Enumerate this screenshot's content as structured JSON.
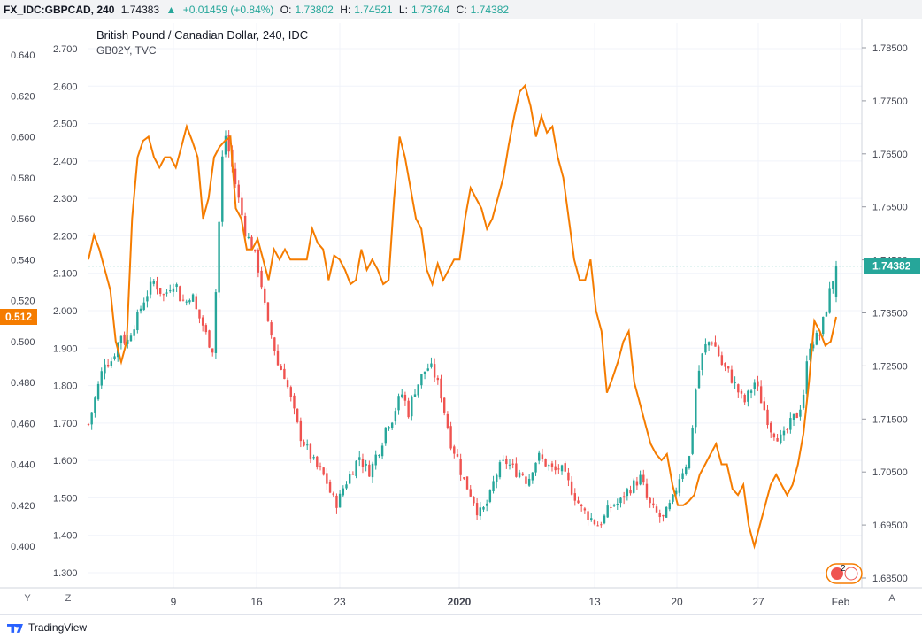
{
  "header": {
    "symbol": "FX_IDC:GBPCAD, 240",
    "last": "1.74383",
    "arrow": "▲",
    "change": "+0.01459 (+0.84%)",
    "o_label": "O:",
    "o_val": "1.73802",
    "h_label": "H:",
    "h_val": "1.74521",
    "l_label": "L:",
    "l_val": "1.73764",
    "c_label": "C:",
    "c_val": "1.74382"
  },
  "legend": {
    "main": "British Pound / Canadian Dollar, 240, IDC",
    "compare": "GB02Y, TVC"
  },
  "buttons": {
    "y": "Y",
    "z": "Z",
    "a": "A"
  },
  "logo": {
    "text": "TradingView"
  },
  "event_badge": "2",
  "colors": {
    "up": "#26a69a",
    "down": "#ef5350",
    "compare": "#f57c00",
    "last_line": "#26a69a"
  },
  "chart_data": {
    "type": "line",
    "x_ticks": [
      "9",
      "16",
      "23",
      "2020",
      "13",
      "20",
      "27",
      "Feb"
    ],
    "left_axis": {
      "ticks": [
        "0.640",
        "0.620",
        "0.600",
        "0.580",
        "0.560",
        "0.540",
        "0.520",
        "0.500",
        "0.480",
        "0.460",
        "0.440",
        "0.420",
        "0.400"
      ],
      "range": [
        0.394,
        0.644
      ],
      "current_label": "0.512"
    },
    "inner_axis": {
      "ticks": [
        "2.700",
        "2.600",
        "2.500",
        "2.400",
        "2.300",
        "2.200",
        "2.100",
        "2.000",
        "1.900",
        "1.800",
        "1.700",
        "1.600",
        "1.500",
        "1.400",
        "1.300"
      ]
    },
    "right_axis": {
      "ticks": [
        "1.78500",
        "1.77500",
        "1.76500",
        "1.75500",
        "1.74500",
        "1.73500",
        "1.72500",
        "1.71500",
        "1.70500",
        "1.69500",
        "1.68500"
      ],
      "range": [
        1.6829,
        1.7875
      ],
      "current_label": "1.74382"
    },
    "series": [
      {
        "name": "GB02Y, TVC",
        "style": "line",
        "x_range": [
          0,
          845
        ],
        "values": [
          0.54,
          0.552,
          0.545,
          0.535,
          0.525,
          0.5,
          0.49,
          0.5,
          0.56,
          0.59,
          0.598,
          0.6,
          0.59,
          0.585,
          0.59,
          0.59,
          0.585,
          0.595,
          0.605,
          0.598,
          0.59,
          0.56,
          0.57,
          0.59,
          0.595,
          0.598,
          0.6,
          0.565,
          0.56,
          0.545,
          0.545,
          0.55,
          0.54,
          0.53,
          0.545,
          0.54,
          0.545,
          0.54,
          0.54,
          0.54,
          0.54,
          0.555,
          0.548,
          0.545,
          0.53,
          0.542,
          0.54,
          0.535,
          0.528,
          0.53,
          0.545,
          0.535,
          0.54,
          0.535,
          0.528,
          0.53,
          0.57,
          0.6,
          0.59,
          0.575,
          0.56,
          0.555,
          0.535,
          0.528,
          0.538,
          0.53,
          0.535,
          0.54,
          0.54,
          0.56,
          0.575,
          0.57,
          0.565,
          0.555,
          0.56,
          0.57,
          0.58,
          0.596,
          0.61,
          0.622,
          0.625,
          0.615,
          0.6,
          0.61,
          0.602,
          0.605,
          0.59,
          0.58,
          0.56,
          0.54,
          0.53,
          0.53,
          0.54,
          0.515,
          0.505,
          0.475,
          0.482,
          0.49,
          0.5,
          0.505,
          0.48,
          0.47,
          0.46,
          0.45,
          0.445,
          0.442,
          0.445,
          0.43,
          0.42,
          0.42,
          0.422,
          0.425,
          0.435,
          0.44,
          0.445,
          0.45,
          0.44,
          0.44,
          0.428,
          0.425,
          0.43,
          0.41,
          0.4,
          0.41,
          0.42,
          0.43,
          0.435,
          0.43,
          0.425,
          0.43,
          0.44,
          0.455,
          0.48,
          0.51,
          0.505,
          0.498,
          0.5,
          0.512
        ]
      },
      {
        "name": "British Pound / Canadian Dollar, 240, IDC",
        "style": "candles",
        "path_values": [
          1.714,
          1.718,
          1.722,
          1.726,
          1.7255,
          1.728,
          1.731,
          1.729,
          1.732,
          1.734,
          1.737,
          1.739,
          1.741,
          1.7395,
          1.738,
          1.74,
          1.741,
          1.7375,
          1.737,
          1.739,
          1.735,
          1.733,
          1.73,
          1.728,
          1.75,
          1.77,
          1.765,
          1.76,
          1.755,
          1.75,
          1.748,
          1.745,
          1.74,
          1.733,
          1.73,
          1.725,
          1.724,
          1.72,
          1.716,
          1.712,
          1.71,
          1.708,
          1.706,
          1.705,
          1.703,
          1.7,
          1.699,
          1.702,
          1.704,
          1.706,
          1.708,
          1.706,
          1.705,
          1.708,
          1.71,
          1.714,
          1.715,
          1.718,
          1.72,
          1.716,
          1.72,
          1.722,
          1.724,
          1.725,
          1.723,
          1.72,
          1.715,
          1.71,
          1.708,
          1.704,
          1.702,
          1.7,
          1.697,
          1.698,
          1.7,
          1.704,
          1.706,
          1.707,
          1.706,
          1.705,
          1.705,
          1.703,
          1.706,
          1.708,
          1.707,
          1.706,
          1.705,
          1.706,
          1.704,
          1.702,
          1.7,
          1.698,
          1.697,
          1.696,
          1.695,
          1.696,
          1.698,
          1.699,
          1.699,
          1.701,
          1.702,
          1.703,
          1.704,
          1.7,
          1.698,
          1.697,
          1.696,
          1.698,
          1.7,
          1.704,
          1.706,
          1.708,
          1.72,
          1.726,
          1.729,
          1.73,
          1.728,
          1.725,
          1.724,
          1.722,
          1.72,
          1.718,
          1.72,
          1.722,
          1.719,
          1.716,
          1.713,
          1.712,
          1.711,
          1.713,
          1.715,
          1.716,
          1.72,
          1.729,
          1.73,
          1.731,
          1.735,
          1.74,
          1.7438
        ]
      }
    ]
  }
}
